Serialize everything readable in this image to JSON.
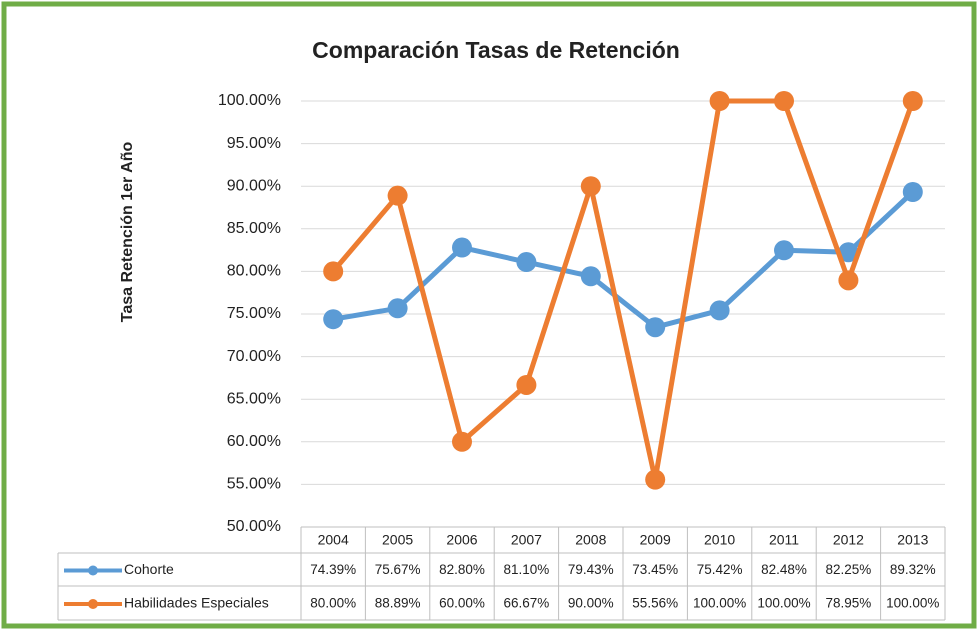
{
  "chart_data": {
    "type": "line",
    "title": "Comparación Tasas de Retención",
    "y_label": "Tasa Retención 1er Año",
    "categories": [
      "2004",
      "2005",
      "2006",
      "2007",
      "2008",
      "2009",
      "2010",
      "2011",
      "2012",
      "2013"
    ],
    "series": [
      {
        "name": "Cohorte",
        "color": "#5b9bd5",
        "values": [
          74.39,
          75.67,
          82.8,
          81.1,
          79.43,
          73.45,
          75.42,
          82.48,
          82.25,
          89.32
        ],
        "value_labels": [
          "74.39%",
          "75.67%",
          "82.80%",
          "81.10%",
          "79.43%",
          "73.45%",
          "75.42%",
          "82.48%",
          "82.25%",
          "89.32%"
        ]
      },
      {
        "name": "Habilidades Especiales",
        "color": "#ed7d31",
        "values": [
          80.0,
          88.89,
          60.0,
          66.67,
          90.0,
          55.56,
          100.0,
          100.0,
          78.95,
          100.0
        ],
        "value_labels": [
          "80.00%",
          "88.89%",
          "60.00%",
          "66.67%",
          "90.00%",
          "55.56%",
          "100.00%",
          "100.00%",
          "78.95%",
          "100.00%"
        ]
      }
    ],
    "ylim": [
      50,
      100
    ],
    "yticks": [
      {
        "value": 50,
        "label": "50.00%"
      },
      {
        "value": 55,
        "label": "55.00%"
      },
      {
        "value": 60,
        "label": "60.00%"
      },
      {
        "value": 65,
        "label": "65.00%"
      },
      {
        "value": 70,
        "label": "70.00%"
      },
      {
        "value": 75,
        "label": "75.00%"
      },
      {
        "value": 80,
        "label": "80.00%"
      },
      {
        "value": 85,
        "label": "85.00%"
      },
      {
        "value": 90,
        "label": "90.00%"
      },
      {
        "value": 95,
        "label": "95.00%"
      },
      {
        "value": 100,
        "label": "100.00%"
      }
    ],
    "grid": true
  }
}
